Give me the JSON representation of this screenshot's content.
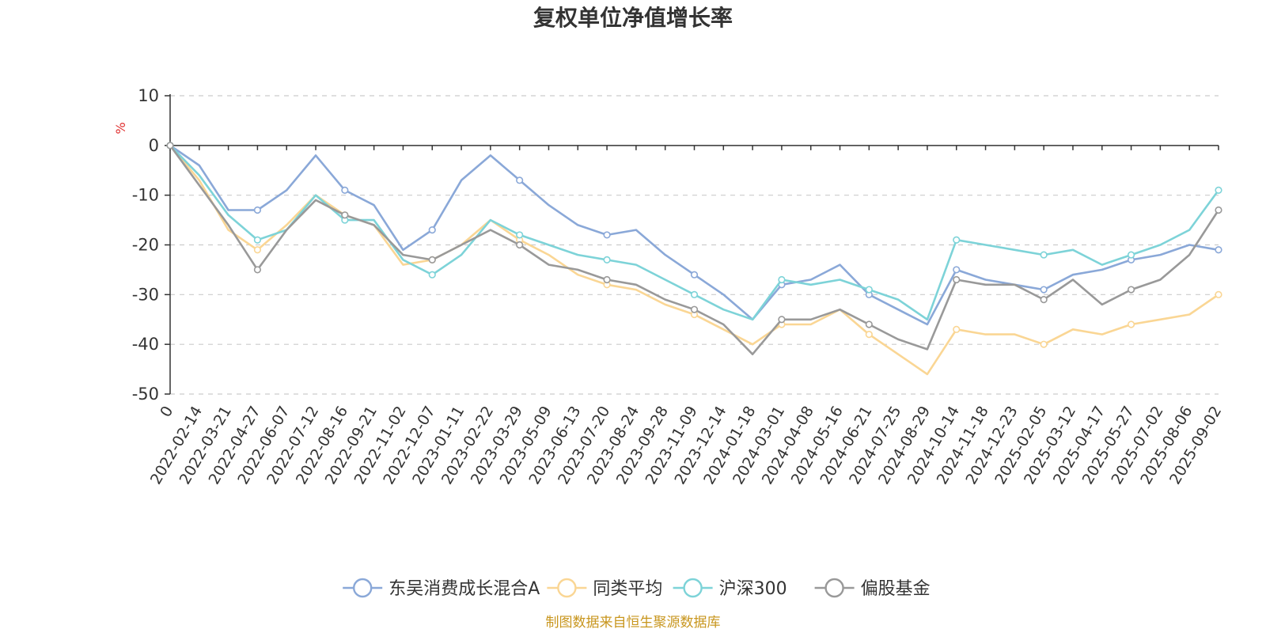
{
  "chart_data": {
    "type": "line",
    "title": "复权单位净值增长率",
    "y_unit": "%",
    "ylim": [
      -50,
      10
    ],
    "y_ticks": [
      10,
      0,
      -10,
      -20,
      -30,
      -40,
      -50
    ],
    "x_start_label": "0",
    "x_tick_labels": [
      "2022-02-14",
      "2022-03-21",
      "2022-04-27",
      "2022-06-07",
      "2022-07-12",
      "2022-08-16",
      "2022-09-21",
      "2022-11-02",
      "2022-12-07",
      "2023-01-11",
      "2023-02-22",
      "2023-03-29",
      "2023-05-09",
      "2023-06-13",
      "2023-07-20",
      "2023-08-24",
      "2023-09-28",
      "2023-11-09",
      "2023-12-14",
      "2024-01-18",
      "2024-03-01",
      "2024-04-08",
      "2024-05-16",
      "2024-06-21",
      "2024-07-25",
      "2024-08-29",
      "2024-10-14",
      "2024-11-18",
      "2024-12-23",
      "2025-02-05",
      "2025-03-12",
      "2025-04-17",
      "2025-05-27",
      "2025-07-02",
      "2025-08-06",
      "2025-09-02"
    ],
    "grid": true,
    "legend_position": "bottom-center",
    "source": "制图数据来自恒生聚源数据库",
    "colors": {
      "title": "#333333",
      "unit": "#e03030",
      "source": "#c8961e",
      "axis": "#333333",
      "grid": "#cccccc"
    },
    "x": [
      "0",
      "2022-02-14",
      "2022-03-21",
      "2022-04-27",
      "2022-06-07",
      "2022-07-12",
      "2022-08-16",
      "2022-09-21",
      "2022-11-02",
      "2022-12-07",
      "2023-01-11",
      "2023-02-22",
      "2023-03-29",
      "2023-05-09",
      "2023-06-13",
      "2023-07-20",
      "2023-08-24",
      "2023-09-28",
      "2023-11-09",
      "2023-12-14",
      "2024-01-18",
      "2024-03-01",
      "2024-04-08",
      "2024-05-16",
      "2024-06-21",
      "2024-07-25",
      "2024-08-29",
      "2024-10-14",
      "2024-11-18",
      "2024-12-23",
      "2025-02-05",
      "2025-03-12",
      "2025-04-17",
      "2025-05-27",
      "2025-07-02",
      "2025-08-06",
      "2025-09-02"
    ],
    "series": [
      {
        "name": "东吴消费成长混合A",
        "color": "#8aa8d8",
        "values": [
          0,
          -4,
          -13,
          -13,
          -9,
          -2,
          -9,
          -12,
          -21,
          -17,
          -7,
          -2,
          -7,
          -12,
          -16,
          -18,
          -17,
          -22,
          -26,
          -30,
          -35,
          -28,
          -27,
          -24,
          -30,
          -33,
          -36,
          -25,
          -27,
          -28,
          -29,
          -26,
          -25,
          -23,
          -22,
          -20,
          -21
        ]
      },
      {
        "name": "同类平均",
        "color": "#fad694",
        "values": [
          0,
          -7,
          -17,
          -21,
          -16,
          -10,
          -14,
          -16,
          -24,
          -23,
          -20,
          -15,
          -19,
          -22,
          -26,
          -28,
          -29,
          -32,
          -34,
          -37,
          -40,
          -36,
          -36,
          -33,
          -38,
          -42,
          -46,
          -37,
          -38,
          -38,
          -40,
          -37,
          -38,
          -36,
          -35,
          -34,
          -30
        ]
      },
      {
        "name": "沪深300",
        "color": "#7dd3d8",
        "values": [
          0,
          -6,
          -14,
          -19,
          -17,
          -10,
          -15,
          -15,
          -23,
          -26,
          -22,
          -15,
          -18,
          -20,
          -22,
          -23,
          -24,
          -27,
          -30,
          -33,
          -35,
          -27,
          -28,
          -27,
          -29,
          -31,
          -35,
          -19,
          -20,
          -21,
          -22,
          -21,
          -24,
          -22,
          -20,
          -17,
          -9
        ]
      },
      {
        "name": "偏股基金",
        "color": "#999999",
        "values": [
          0,
          -8,
          -16,
          -25,
          -17,
          -11,
          -14,
          -16,
          -22,
          -23,
          -20,
          -17,
          -20,
          -24,
          -25,
          -27,
          -28,
          -31,
          -33,
          -36,
          -42,
          -35,
          -35,
          -33,
          -36,
          -39,
          -41,
          -27,
          -28,
          -28,
          -31,
          -27,
          -32,
          -29,
          -27,
          -22,
          -13
        ]
      }
    ]
  }
}
